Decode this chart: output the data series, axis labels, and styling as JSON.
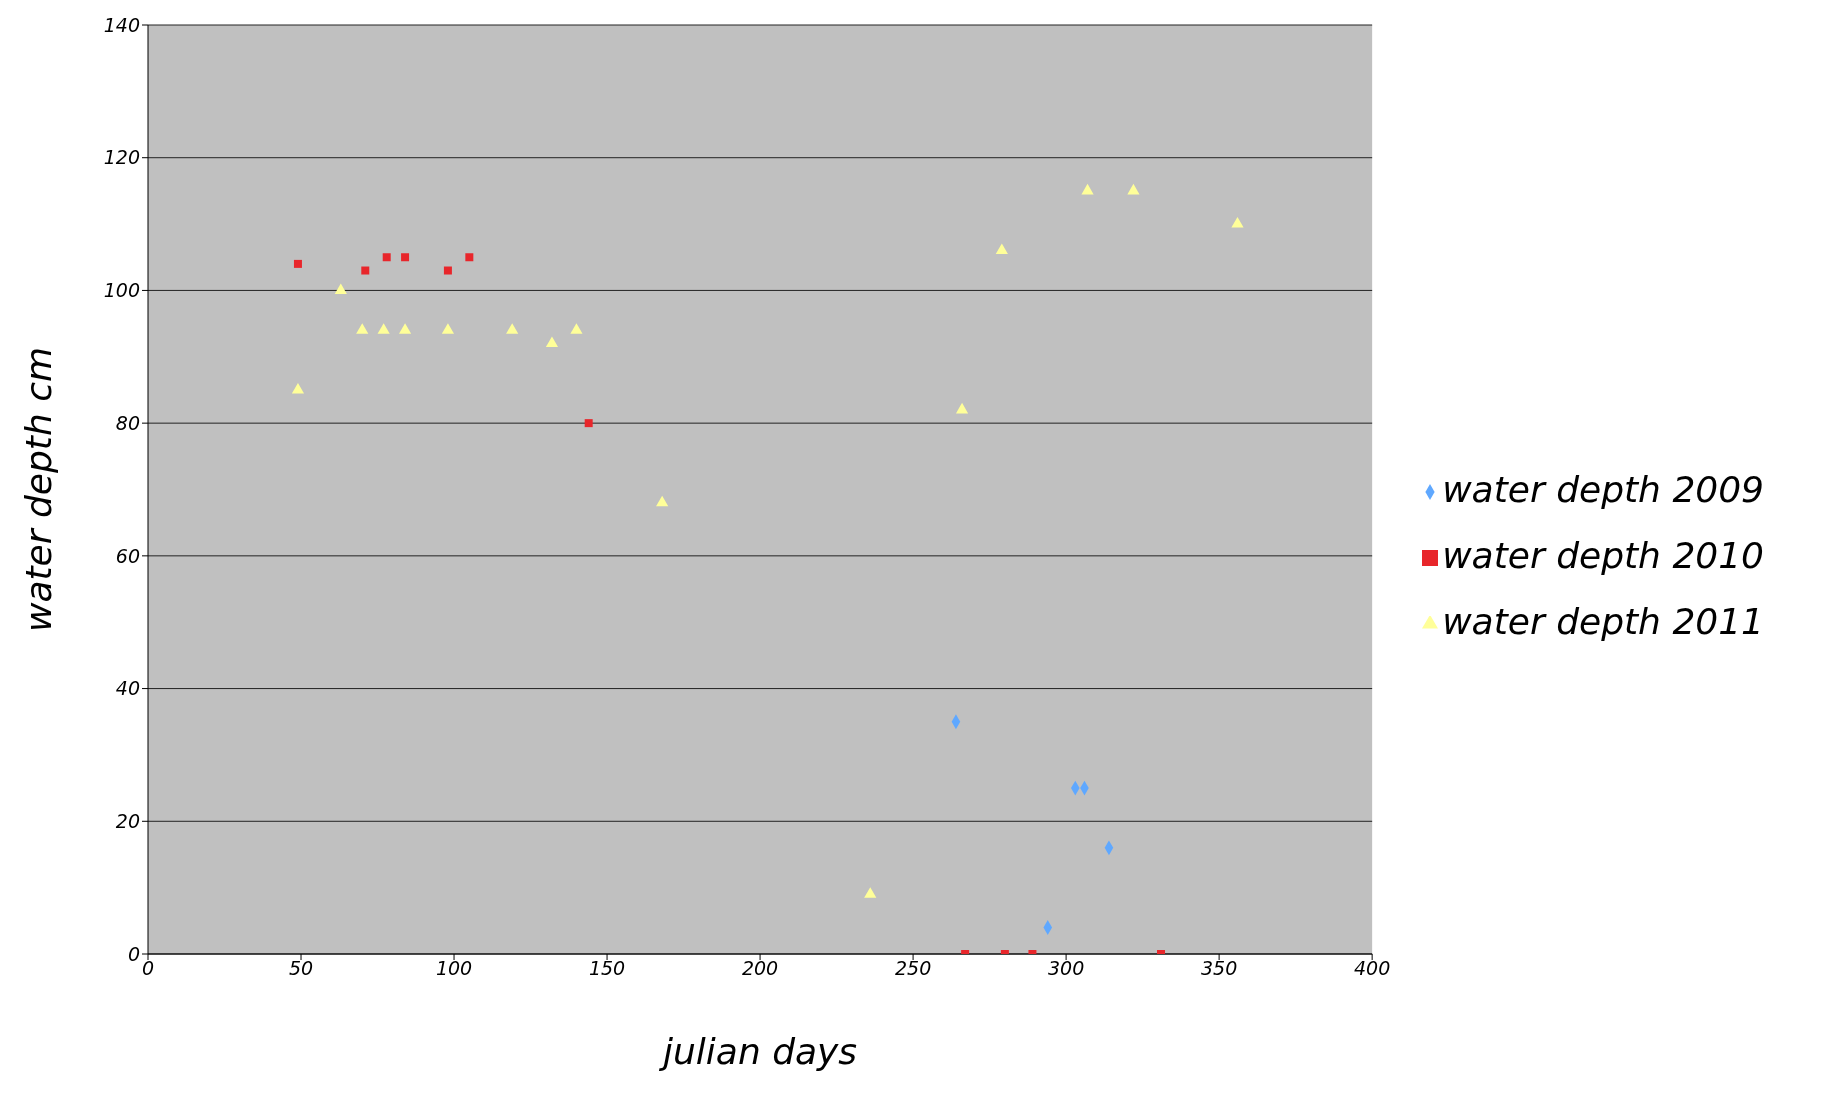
{
  "chart_data": {
    "type": "scatter",
    "xlabel": "julian days",
    "ylabel": "water depth cm",
    "xlim": [
      0,
      400
    ],
    "xticks": [
      0,
      50,
      100,
      150,
      200,
      250,
      300,
      350,
      400
    ],
    "ylim": [
      0,
      140
    ],
    "yticks": [
      0,
      20,
      40,
      60,
      80,
      100,
      120,
      140
    ],
    "grid": "y",
    "legend": "right",
    "series": [
      {
        "name": "water depth 2009",
        "color": "#5fa8ff",
        "marker": "diamond",
        "x": [
          264,
          294,
          303,
          306,
          314
        ],
        "values": [
          35,
          4,
          25,
          25,
          16
        ]
      },
      {
        "name": "water depth 2010",
        "color": "#e8262b",
        "marker": "square",
        "x": [
          49,
          71,
          78,
          84,
          98,
          105,
          144,
          267,
          280,
          289,
          331
        ],
        "values": [
          104,
          103,
          105,
          105,
          103,
          105,
          80,
          0,
          0,
          0,
          0
        ]
      },
      {
        "name": "water depth 2011",
        "color": "#ffff99",
        "marker": "triangle",
        "x": [
          49,
          63,
          70,
          77,
          84,
          98,
          119,
          132,
          140,
          168,
          236,
          266,
          279,
          307,
          322,
          356
        ],
        "values": [
          85,
          100,
          94,
          94,
          94,
          94,
          94,
          92,
          94,
          68,
          9,
          82,
          106,
          115,
          115,
          110
        ]
      }
    ]
  }
}
